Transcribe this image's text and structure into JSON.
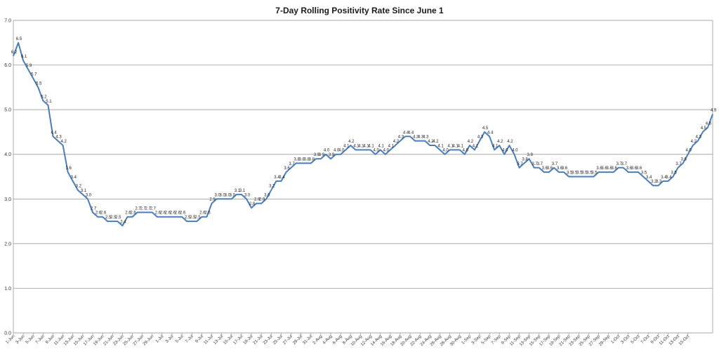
{
  "chart_data": {
    "type": "line",
    "title": "7-Day Rolling Positivity Rate Since June 1",
    "xlabel": "",
    "ylabel": "",
    "ylim": [
      0,
      7
    ],
    "yticks": [
      "0.0",
      "1.0",
      "2.0",
      "3.0",
      "4.0",
      "5.0",
      "6.0",
      "7.0"
    ],
    "grid": "horizontal",
    "legend": "none",
    "line_color": "#4a7ebb",
    "x_tick_labels": [
      "1-Jun",
      "3-Jun",
      "5-Jun",
      "7-Jun",
      "9-Jun",
      "11-Jun",
      "13-Jun",
      "15-Jun",
      "17-Jun",
      "19-Jun",
      "21-Jun",
      "23-Jun",
      "25-Jun",
      "27-Jun",
      "29-Jun",
      "1-Jul",
      "3-Jul",
      "5-Jul",
      "7-Jul",
      "9-Jul",
      "11-Jul",
      "13-Jul",
      "15-Jul",
      "17-Jul",
      "19-Jul",
      "21-Jul",
      "23-Jul",
      "25-Jul",
      "27-Jul",
      "29-Jul",
      "31-Jul",
      "2-Aug",
      "4-Aug",
      "6-Aug",
      "8-Aug",
      "10-Aug",
      "12-Aug",
      "14-Aug",
      "16-Aug",
      "18-Aug",
      "20-Aug",
      "22-Aug",
      "24-Aug",
      "26-Aug",
      "28-Aug",
      "30-Aug",
      "1-Sep",
      "3-Sep",
      "5-Sep",
      "7-Sep",
      "9-Sep",
      "11-Sep",
      "13-Sep",
      "15-Sep",
      "17-Sep",
      "19-Sep",
      "21-Sep",
      "23-Sep",
      "25-Sep",
      "27-Sep",
      "29-Sep",
      "1-Oct",
      "3-Oct",
      "5-Oct",
      "7-Oct",
      "9-Oct",
      "11-Oct",
      "13-Oct",
      "15-Oct"
    ],
    "series": [
      {
        "name": "",
        "values": [
          6.2,
          6.5,
          6.1,
          5.9,
          5.7,
          5.5,
          5.2,
          5.1,
          4.4,
          4.3,
          4.2,
          3.6,
          3.4,
          3.2,
          3.1,
          3.0,
          2.7,
          2.6,
          2.6,
          2.5,
          2.5,
          2.5,
          2.4,
          2.6,
          2.6,
          2.7,
          2.7,
          2.7,
          2.7,
          2.6,
          2.6,
          2.6,
          2.6,
          2.6,
          2.6,
          2.5,
          2.5,
          2.5,
          2.6,
          2.6,
          2.9,
          3.0,
          3.0,
          3.0,
          3.0,
          3.1,
          3.1,
          3.0,
          2.8,
          2.9,
          2.9,
          3.0,
          3.2,
          3.4,
          3.4,
          3.6,
          3.7,
          3.8,
          3.8,
          3.8,
          3.8,
          3.9,
          3.9,
          4.0,
          3.9,
          4.0,
          4.0,
          4.1,
          4.2,
          4.1,
          4.1,
          4.1,
          4.1,
          4.0,
          4.1,
          4.0,
          4.1,
          4.2,
          4.3,
          4.4,
          4.4,
          4.3,
          4.3,
          4.3,
          4.2,
          4.2,
          4.1,
          4.0,
          4.1,
          4.1,
          4.1,
          4.0,
          4.2,
          4.1,
          4.3,
          4.5,
          4.4,
          4.1,
          4.2,
          4.0,
          4.2,
          4.0,
          3.7,
          3.8,
          3.9,
          3.7,
          3.7,
          3.6,
          3.6,
          3.7,
          3.6,
          3.6,
          3.5,
          3.5,
          3.5,
          3.5,
          3.5,
          3.5,
          3.6,
          3.6,
          3.6,
          3.6,
          3.7,
          3.7,
          3.6,
          3.6,
          3.6,
          3.5,
          3.4,
          3.3,
          3.3,
          3.4,
          3.4,
          3.5,
          3.7,
          3.8,
          4.0,
          4.2,
          4.3,
          4.5,
          4.6,
          4.9
        ]
      }
    ]
  }
}
